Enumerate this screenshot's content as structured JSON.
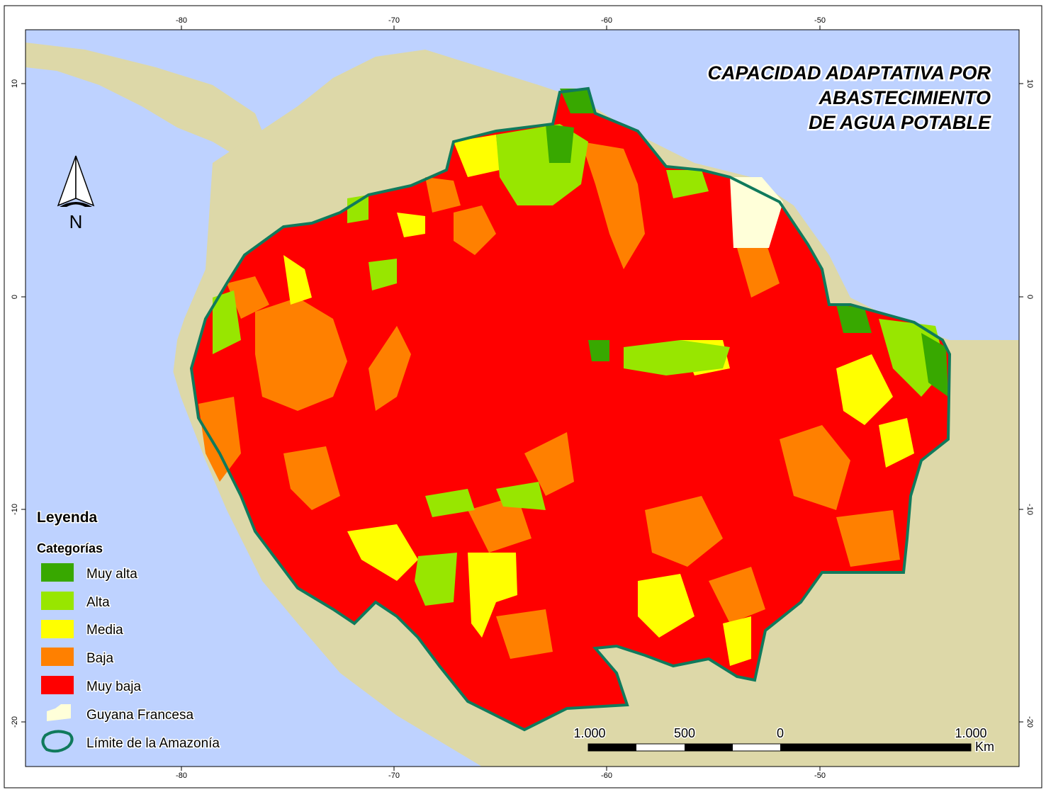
{
  "title": {
    "lines": [
      "CAPACIDAD ADAPTATIVA POR",
      "ABASTECIMIENTO",
      "DE AGUA POTABLE"
    ]
  },
  "graticule": {
    "longitude_labels": [
      "-80",
      "-70",
      "-60",
      "-50"
    ],
    "latitude_labels": [
      "10",
      "0",
      "-10",
      "-20"
    ]
  },
  "north_arrow": {
    "label": "N"
  },
  "legend": {
    "title": "Leyenda",
    "subtitle": "Categorías",
    "items": [
      {
        "label": "Muy alta",
        "color": "#38a800"
      },
      {
        "label": "Alta",
        "color": "#98e600"
      },
      {
        "label": "Media",
        "color": "#ffff00"
      },
      {
        "label": "Baja",
        "color": "#ff8000"
      },
      {
        "label": "Muy baja",
        "color": "#ff0000"
      },
      {
        "label": "Guyana Francesa",
        "color": "#ffffd9"
      },
      {
        "label": "Límite de la Amazonía",
        "color": "#107a5c"
      }
    ]
  },
  "scale_bar": {
    "labels": [
      "1.000",
      "500",
      "0",
      "1.000"
    ],
    "unit": "Km"
  },
  "colors": {
    "ocean": "#bed2ff",
    "land": "#ddd8a8",
    "boundary": "#107a5c"
  }
}
